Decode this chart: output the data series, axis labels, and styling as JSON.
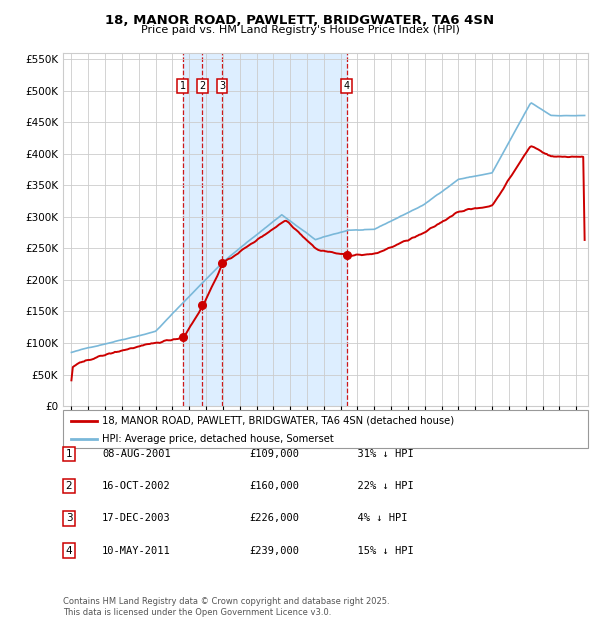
{
  "title": "18, MANOR ROAD, PAWLETT, BRIDGWATER, TA6 4SN",
  "subtitle": "Price paid vs. HM Land Registry's House Price Index (HPI)",
  "legend_line1": "18, MANOR ROAD, PAWLETT, BRIDGWATER, TA6 4SN (detached house)",
  "legend_line2": "HPI: Average price, detached house, Somerset",
  "footer": "Contains HM Land Registry data © Crown copyright and database right 2025.\nThis data is licensed under the Open Government Licence v3.0.",
  "transactions": [
    {
      "num": 1,
      "date": "08-AUG-2001",
      "price": 109000,
      "pct": "31%",
      "direction": "↓"
    },
    {
      "num": 2,
      "date": "16-OCT-2002",
      "price": 160000,
      "pct": "22%",
      "direction": "↓"
    },
    {
      "num": 3,
      "date": "17-DEC-2003",
      "price": 226000,
      "pct": "4%",
      "direction": "↓"
    },
    {
      "num": 4,
      "date": "10-MAY-2011",
      "price": 239000,
      "pct": "15%",
      "direction": "↓"
    }
  ],
  "transaction_dates_decimal": [
    2001.604,
    2002.789,
    2003.956,
    2011.356
  ],
  "trans_prices": [
    109000,
    160000,
    226000,
    239000
  ],
  "shade_start": 2001.604,
  "shade_end": 2011.356,
  "ylim": [
    0,
    560000
  ],
  "xlim_start": 1994.5,
  "xlim_end": 2025.7,
  "hpi_color": "#7ab8d9",
  "red_color": "#cc0000",
  "shade_color": "#ddeeff",
  "grid_color": "#cccccc",
  "background_color": "#ffffff",
  "yticks": [
    0,
    50000,
    100000,
    150000,
    200000,
    250000,
    300000,
    350000,
    400000,
    450000,
    500000,
    550000
  ]
}
